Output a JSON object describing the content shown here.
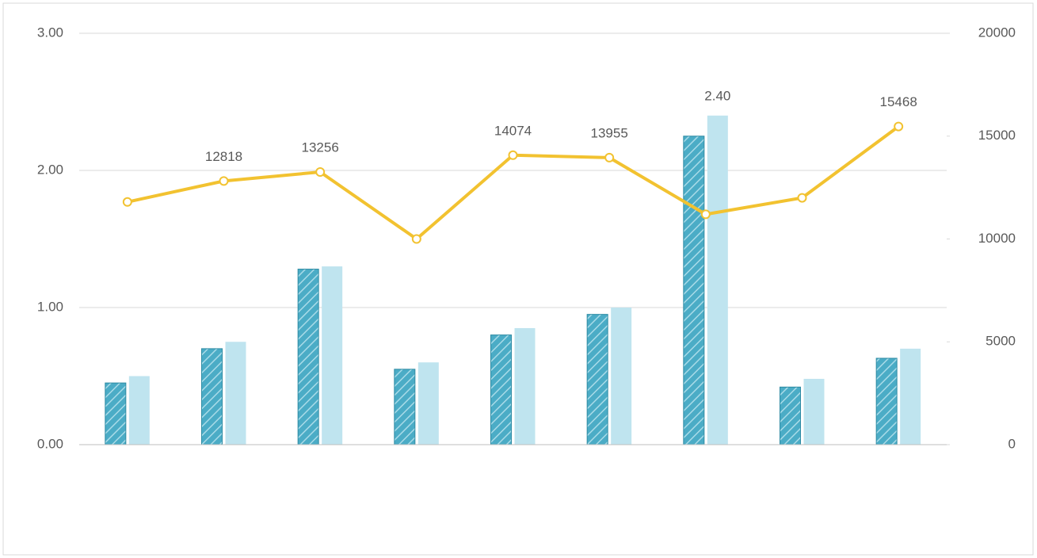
{
  "chart_data": {
    "type": "combo",
    "categories": [
      null,
      null,
      null,
      null,
      null,
      null,
      null,
      null,
      null
    ],
    "series": [
      {
        "type": "bar",
        "color": "#4bacc6",
        "hatch": true,
        "values": [
          0.45,
          0.7,
          1.28,
          0.55,
          0.8,
          0.95,
          2.25,
          0.42,
          0.63
        ]
      },
      {
        "type": "bar",
        "color": "#bfe4ef",
        "values": [
          0.5,
          0.75,
          1.3,
          0.6,
          0.85,
          1.0,
          2.4,
          0.48,
          0.7
        ],
        "value_labels": [
          null,
          null,
          null,
          null,
          null,
          null,
          "2.40",
          null,
          null
        ]
      },
      {
        "type": "line",
        "axis": "y2",
        "color": "#f2c230",
        "values": [
          11800,
          12818,
          13256,
          10000,
          14074,
          13955,
          11200,
          12000,
          15468
        ],
        "value_labels": [
          null,
          "12818",
          "13256",
          null,
          "14074",
          "13955",
          null,
          null,
          "15468"
        ]
      }
    ],
    "ylim": [
      0,
      3
    ],
    "yticks": [
      {
        "value": 0,
        "label": "0.00"
      },
      {
        "value": 1,
        "label": "1.00"
      },
      {
        "value": 2,
        "label": "2.00"
      },
      {
        "value": 3,
        "label": "3.00"
      }
    ],
    "y2lim": [
      0,
      20000
    ],
    "y2ticks": [
      0,
      5000,
      10000,
      15000,
      20000
    ],
    "grid": true
  }
}
